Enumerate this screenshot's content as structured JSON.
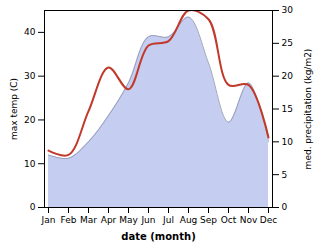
{
  "chart_data": {
    "type": "line",
    "categories": [
      "Jan",
      "Feb",
      "Mar",
      "Apr",
      "May",
      "Jun",
      "Jul",
      "Aug",
      "Sep",
      "Oct",
      "Nov",
      "Dec"
    ],
    "xlabel": "date (month)",
    "ylabel": "max temp (C)",
    "y2label": "med. precipitation (kg/m2)",
    "ylim": [
      0,
      45
    ],
    "yticks": [
      0,
      10,
      20,
      30,
      40
    ],
    "y2lim": [
      0,
      30
    ],
    "y2ticks": [
      0,
      5,
      10,
      15,
      20,
      25,
      30
    ],
    "series": [
      {
        "type": "area",
        "axis": "y2",
        "color": "#c5cdf0",
        "values": [
          8,
          7.5,
          10,
          14,
          19,
          26,
          26,
          29,
          22,
          13,
          19,
          10
        ]
      },
      {
        "type": "line",
        "color": "#c0392b",
        "values": [
          13,
          12,
          22,
          32,
          27,
          37,
          38,
          45,
          43,
          28,
          28,
          16
        ]
      }
    ]
  }
}
